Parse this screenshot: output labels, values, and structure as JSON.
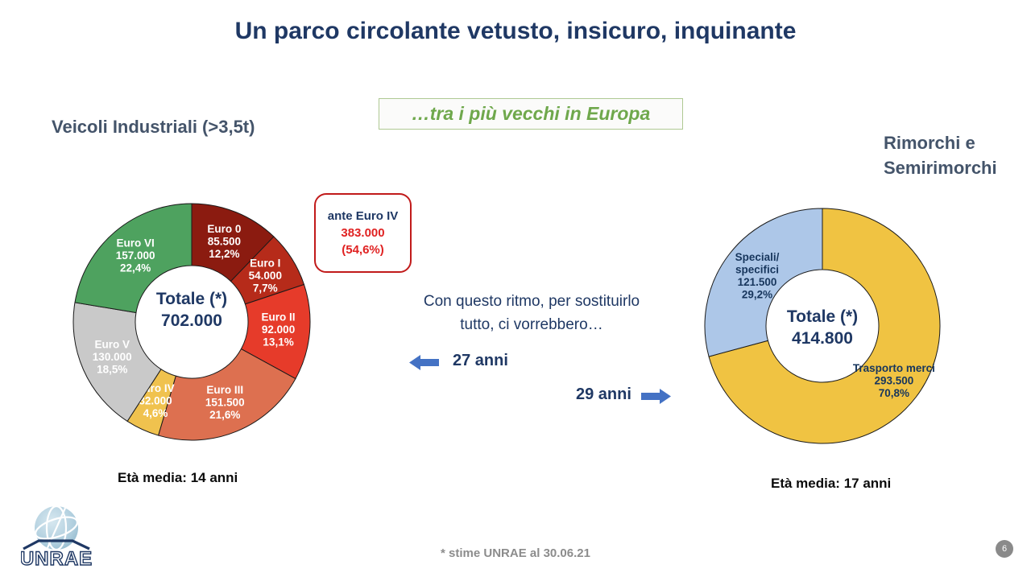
{
  "title": "Un parco circolante vetusto, insicuro, inquinante",
  "subtitle_box": "…tra i più vecchi in Europa",
  "left_section": {
    "heading": "Veicoli Industriali (>3,5t)",
    "age_note": "Età media: 14 anni"
  },
  "right_section": {
    "heading_line1": "Rimorchi e",
    "heading_line2": "Semirimorchi",
    "age_note": "Età media: 17 anni"
  },
  "callout_box": {
    "title": "ante Euro IV",
    "value": "383.000",
    "pct": "(54,6%)"
  },
  "middle_text": {
    "line1": "Con questo ritmo, per sostituirlo",
    "line2": "tutto, ci vorrebbero…",
    "left_arrow_label": "27 anni",
    "right_arrow_label": "29 anni"
  },
  "footer_note": "* stime UNRAE al 30.06.21",
  "page_number": "6",
  "logo_text": "UNRAE",
  "colors": {
    "title_navy": "#1F3864",
    "heading_slate": "#44546A",
    "subtitle_green": "#6FA84C",
    "callout_red": "#C11B1B",
    "arrow_blue": "#4472C4",
    "footer_gray": "#8C8C8C"
  },
  "chart_data": [
    {
      "type": "pie",
      "variant": "donut",
      "title": "Veicoli Industriali (>3,5t)",
      "center_label": [
        "Totale (*)",
        "702.000"
      ],
      "total_label": "Totale (*)",
      "total_value": "702.000",
      "annotation": "ante Euro IV 383.000 (54,6%)",
      "segments": [
        {
          "label": "Euro 0",
          "value": "85.500",
          "pct": 12.2,
          "pct_label": "12,2%",
          "color": "#8B1B10",
          "text_color": "#FFFFFF"
        },
        {
          "label": "Euro I",
          "value": "54.000",
          "pct": 7.7,
          "pct_label": "7,7%",
          "color": "#B62B1A",
          "text_color": "#FFFFFF"
        },
        {
          "label": "Euro II",
          "value": "92.000",
          "pct": 13.1,
          "pct_label": "13,1%",
          "color": "#E63B2A",
          "text_color": "#FFFFFF"
        },
        {
          "label": "Euro III",
          "value": "151.500",
          "pct": 21.6,
          "pct_label": "21,6%",
          "color": "#DD7050",
          "text_color": "#FFFFFF"
        },
        {
          "label": "Euro IV",
          "value": "32.000",
          "pct": 4.6,
          "pct_label": "4,6%",
          "color": "#F0C24E",
          "text_color": "#FFFFFF"
        },
        {
          "label": "Euro V",
          "value": "130.000",
          "pct": 18.5,
          "pct_label": "18,5%",
          "color": "#C9C9C9",
          "text_color": "#FFFFFF"
        },
        {
          "label": "Euro VI",
          "value": "157.000",
          "pct": 22.4,
          "pct_label": "22,4%",
          "color": "#4EA25F",
          "text_color": "#FFFFFF"
        }
      ]
    },
    {
      "type": "pie",
      "variant": "donut",
      "title": "Rimorchi e Semirimorchi",
      "center_label": [
        "Totale (*)",
        "414.800"
      ],
      "total_label": "Totale (*)",
      "total_value": "414.800",
      "segments": [
        {
          "label": "Trasporto merci",
          "value": "293.500",
          "pct": 70.8,
          "pct_label": "70,8%",
          "color": "#F0C342",
          "text_color": "#17365D",
          "label_radius": 112,
          "label_lines": [
            "Trasporto merci",
            "293.500",
            "70,8%"
          ]
        },
        {
          "label": "Speciali/specifici",
          "value": "121.500",
          "pct": 29.2,
          "pct_label": "29,2%",
          "color": "#ADC7E8",
          "text_color": "#17365D",
          "label_radius": 102,
          "label_lines": [
            "Speciali/",
            "specifici",
            "121.500",
            "29,2%"
          ]
        }
      ]
    }
  ]
}
